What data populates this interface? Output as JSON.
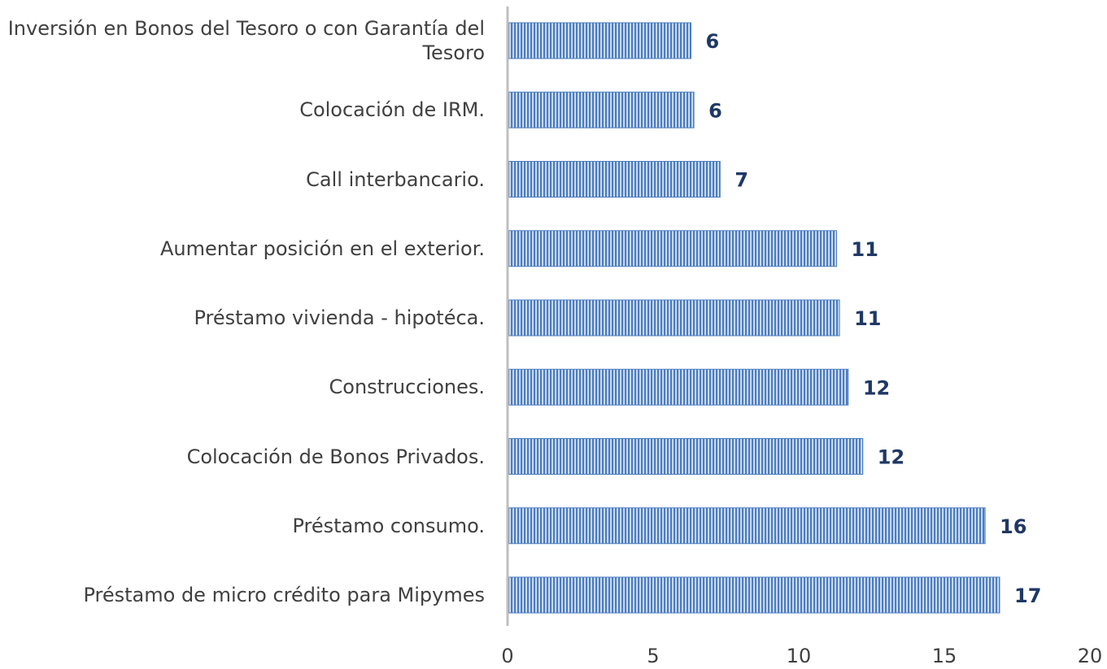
{
  "chart_data": {
    "type": "barh",
    "categories": [
      "Inversión en Bonos del Tesoro o con Garantía del Tesoro",
      "Colocación de IRM.",
      "Call interbancario.",
      "Aumentar posición en el exterior.",
      "Préstamo vivienda - hipotéca.",
      "Construcciones.",
      "Colocación de Bonos Privados.",
      "Préstamo consumo.",
      "Préstamo de micro crédito para Mipymes"
    ],
    "values": [
      6.3,
      6.4,
      7.3,
      11.3,
      11.4,
      11.7,
      12.2,
      16.4,
      16.9
    ],
    "value_labels": [
      "6",
      "6",
      "7",
      "11",
      "11",
      "12",
      "12",
      "16",
      "17"
    ],
    "color": "#4a7cc0",
    "xlim": [
      0,
      20
    ],
    "xticks": [
      0,
      5,
      10,
      15,
      20
    ],
    "grid": false
  }
}
